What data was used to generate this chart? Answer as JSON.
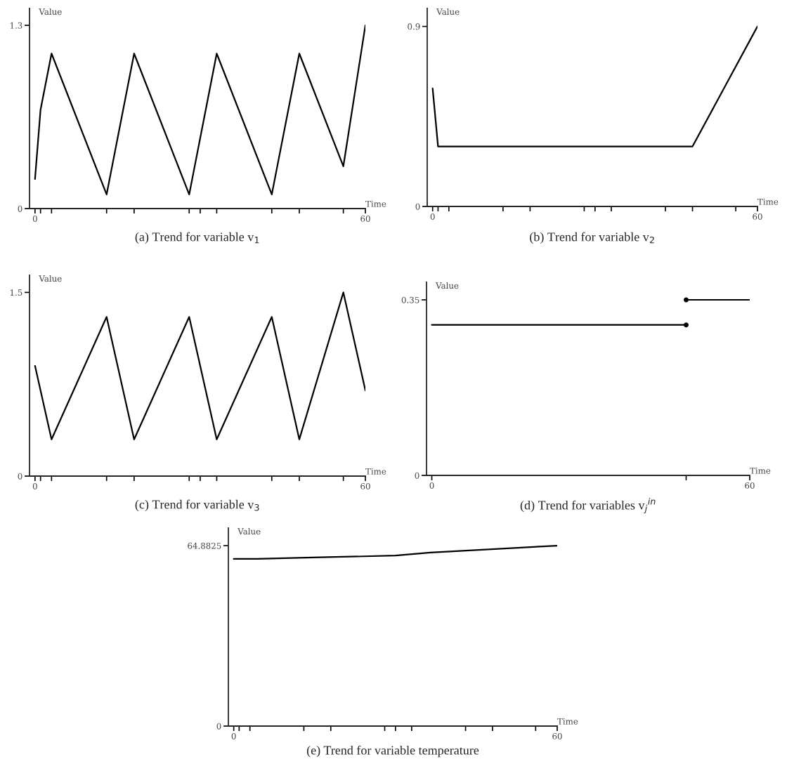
{
  "chart_data": [
    {
      "type": "line",
      "title": "(a) Trend for variable v$_{1}$",
      "xlabel": "Time",
      "ylabel": "Value",
      "xlim": [
        -1,
        60
      ],
      "ylim": [
        0,
        1.42
      ],
      "xticks": [
        0,
        {
          "value": 1,
          "label": null
        },
        {
          "value": 3,
          "label": null
        },
        {
          "value": 13,
          "label": null
        },
        {
          "value": 18,
          "label": null
        },
        {
          "value": 28,
          "label": null
        },
        {
          "value": 30,
          "label": null
        },
        {
          "value": 33,
          "label": null
        },
        {
          "value": 43,
          "label": null
        },
        {
          "value": 48,
          "label": null
        },
        {
          "value": 56,
          "label": null
        },
        60
      ],
      "yticks": [
        0,
        1.3
      ],
      "series": [
        {
          "color": "#000000",
          "x": [
            0,
            1,
            3,
            13,
            18,
            28,
            33,
            43,
            48,
            56,
            60
          ],
          "values": [
            0.21,
            0.7,
            1.1,
            0.1,
            1.1,
            0.1,
            1.1,
            0.1,
            1.1,
            0.3,
            1.3
          ]
        }
      ]
    },
    {
      "type": "line",
      "title": "(b) Trend for variable v$_{2}$",
      "xlabel": "Time",
      "ylabel": "Value",
      "xlim": [
        -1,
        60
      ],
      "ylim": [
        0,
        0.99
      ],
      "xticks": [
        0,
        {
          "value": 1,
          "label": null
        },
        {
          "value": 3,
          "label": null
        },
        {
          "value": 13,
          "label": null
        },
        {
          "value": 18,
          "label": null
        },
        {
          "value": 28,
          "label": null
        },
        {
          "value": 30,
          "label": null
        },
        {
          "value": 33,
          "label": null
        },
        {
          "value": 43,
          "label": null
        },
        {
          "value": 48,
          "label": null
        },
        {
          "value": 56,
          "label": null
        },
        60
      ],
      "yticks": [
        0,
        0.9
      ],
      "series": [
        {
          "color": "#000000",
          "x": [
            0,
            1,
            48,
            60
          ],
          "values": [
            0.59,
            0.3,
            0.3,
            0.9
          ]
        }
      ]
    },
    {
      "type": "line",
      "title": "(c) Trend for variable v$_{3}$",
      "xlabel": "Time",
      "ylabel": "Value",
      "xlim": [
        -1,
        60
      ],
      "ylim": [
        0,
        1.64
      ],
      "xticks": [
        0,
        {
          "value": 1,
          "label": null
        },
        {
          "value": 3,
          "label": null
        },
        {
          "value": 13,
          "label": null
        },
        {
          "value": 18,
          "label": null
        },
        {
          "value": 28,
          "label": null
        },
        {
          "value": 30,
          "label": null
        },
        {
          "value": 33,
          "label": null
        },
        {
          "value": 43,
          "label": null
        },
        {
          "value": 48,
          "label": null
        },
        {
          "value": 56,
          "label": null
        },
        60
      ],
      "yticks": [
        0,
        1.5
      ],
      "series": [
        {
          "color": "#000000",
          "x": [
            0,
            3,
            13,
            18,
            28,
            33,
            43,
            48,
            56,
            60
          ],
          "values": [
            0.9,
            0.3,
            1.3,
            0.3,
            1.3,
            0.3,
            1.3,
            0.3,
            1.5,
            0.7
          ]
        }
      ]
    },
    {
      "type": "line",
      "title": "(d) Trend for variables v$_{j}$$^{in}$",
      "xlabel": "Time",
      "ylabel": "Value",
      "xlim": [
        -1,
        60
      ],
      "ylim": [
        0,
        0.385
      ],
      "xticks": [
        0,
        {
          "value": 48,
          "label": null
        },
        60
      ],
      "yticks": [
        0,
        0.35
      ],
      "series": [
        {
          "color": "#000000",
          "x": [
            0,
            48
          ],
          "values": [
            0.3,
            0.3
          ]
        },
        {
          "color": "#000000",
          "x": [
            48,
            60
          ],
          "values": [
            0.35,
            0.35
          ]
        },
        {
          "type": "scatter",
          "marker": "circle",
          "color": "#000000",
          "x": [
            48,
            48
          ],
          "values": [
            0.3,
            0.35
          ]
        }
      ]
    },
    {
      "type": "line",
      "title": "(e) Trend for variable temperature",
      "xlabel": "Time",
      "ylabel": "Value",
      "xlim": [
        -1,
        60
      ],
      "ylim": [
        0,
        71.2
      ],
      "xticks": [
        0,
        {
          "value": 1,
          "label": null
        },
        {
          "value": 3,
          "label": null
        },
        {
          "value": 13,
          "label": null
        },
        {
          "value": 18,
          "label": null
        },
        {
          "value": 28,
          "label": null
        },
        {
          "value": 30,
          "label": null
        },
        {
          "value": 33,
          "label": null
        },
        {
          "value": 43,
          "label": null
        },
        {
          "value": 48,
          "label": null
        },
        {
          "value": 56,
          "label": null
        },
        60
      ],
      "yticks": [
        0,
        64.8825
      ],
      "series": [
        {
          "color": "#000000",
          "x": [
            0,
            4.3,
            14.7,
            30,
            36.5,
            60
          ],
          "values": [
            60.1,
            60.1,
            60.6,
            61.3,
            62.4,
            64.8825
          ]
        }
      ]
    }
  ]
}
